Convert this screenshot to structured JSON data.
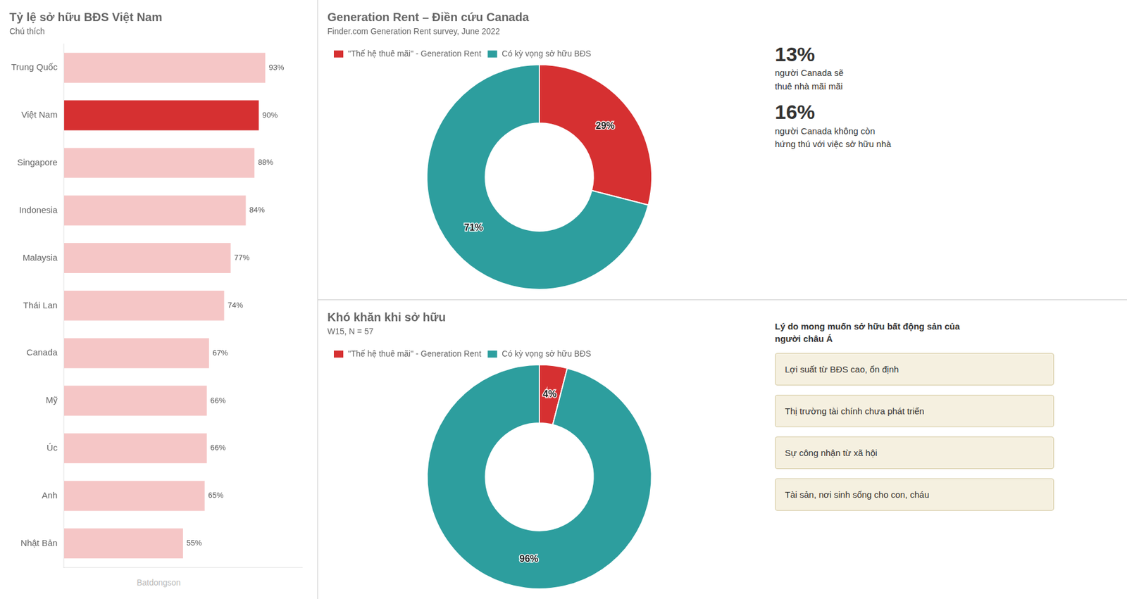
{
  "chart_data": [
    {
      "type": "bar",
      "orientation": "horizontal",
      "title": "Tỷ lệ sở hữu BĐS Việt Nam",
      "subtitle": "Chú thích",
      "categories": [
        "Trung Quốc",
        "Việt Nam",
        "Singapore",
        "Indonesia",
        "Malaysia",
        "Thái Lan",
        "Canada",
        "Mỹ",
        "Úc",
        "Anh",
        "Nhật Bản"
      ],
      "values": [
        93,
        90,
        88,
        84,
        77,
        74,
        67,
        66,
        66,
        65,
        55
      ],
      "value_labels": [
        "93%",
        "90%",
        "88%",
        "84%",
        "77%",
        "74%",
        "67%",
        "66%",
        "66%",
        "65%",
        "55%"
      ],
      "colors": [
        "#f5c6c6",
        "#d63031",
        "#f5c6c6",
        "#f5c6c6",
        "#f5c6c6",
        "#f5c6c6",
        "#f5c6c6",
        "#f5c6c6",
        "#f5c6c6",
        "#f5c6c6",
        "#f5c6c6"
      ],
      "xlim": [
        0,
        110
      ],
      "data_labels": true,
      "tick_labels": "y",
      "grid": false,
      "annotations": [
        "Batdongson"
      ]
    },
    {
      "type": "doughnut",
      "title": "Generation Rent – Điền cứu Canada",
      "subtitle": "Finder.com Generation Rent survey, June 2022",
      "categories": [
        "\"Thế hệ thuê mãi\" - Generation Rent",
        "Có kỳ vọng sở hữu BĐS"
      ],
      "values": [
        29,
        71
      ],
      "value_labels": [
        "29%",
        "71%"
      ],
      "colors": [
        "#d63031",
        "#2d9e9e"
      ],
      "data_labels": true,
      "legend": "top",
      "annotations": [
        "13%",
        "người Canada sẽ\nthuê nhà mãi mãi",
        "16%",
        "người Canada không còn\nhứng thú với việc sở hữu nhà"
      ]
    },
    {
      "type": "doughnut",
      "title": "Khó khăn khi sở hữu",
      "subtitle": "W15, N = 57",
      "categories": [
        "\"Thế hệ thuê mãi\" - Generation Rent",
        "Có kỳ vọng sở hữu BĐS"
      ],
      "values": [
        4,
        96
      ],
      "value_labels": [
        "4%",
        "96%"
      ],
      "colors": [
        "#d63031",
        "#2d9e9e"
      ],
      "data_labels": true,
      "legend": "top",
      "annotations": [
        "Lý do mong muốn sở hữu bất động sản của\nngười châu Á",
        "Lợi suất từ BĐS cao, ổn định",
        "Thị trường tài chính chưa phát triển",
        "Sự công nhận từ xã hội",
        "Tài sản, nơi sinh sống cho con, cháu"
      ]
    }
  ]
}
